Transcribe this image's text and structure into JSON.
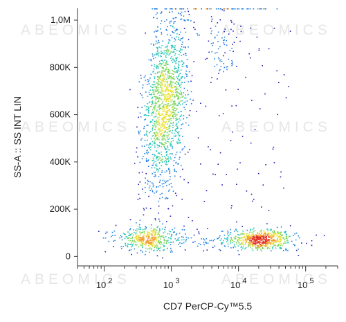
{
  "chart_data": {
    "type": "scatter",
    "title": "",
    "xlabel": "CD7 PerCP-Cy™5.5",
    "ylabel": "SS-A :: SS INT LIN",
    "x_scale": "log",
    "xlim": [
      40,
      300000
    ],
    "ylim": [
      -40000,
      1050000
    ],
    "x_ticks": [
      {
        "value": 100,
        "base": "10",
        "exp": "2"
      },
      {
        "value": 1000,
        "base": "10",
        "exp": "3"
      },
      {
        "value": 10000,
        "base": "10",
        "exp": "4"
      },
      {
        "value": 100000,
        "base": "10",
        "exp": "5"
      }
    ],
    "y_ticks": [
      {
        "value": 0,
        "label": "0"
      },
      {
        "value": 200000,
        "label": "200K"
      },
      {
        "value": 400000,
        "label": "400K"
      },
      {
        "value": 600000,
        "label": "600K"
      },
      {
        "value": 800000,
        "label": "800K"
      },
      {
        "value": 1000000,
        "label": "1,0M"
      }
    ],
    "colormap": [
      "#1c1cb4",
      "#1f7fe0",
      "#25c4b8",
      "#7dd65a",
      "#e8e23a",
      "#f29a2a",
      "#e03020"
    ],
    "populations": [
      {
        "x_center": 800,
        "y_center": 650000,
        "x_spread": 0.16,
        "y_spread": 200000,
        "share": 0.55
      },
      {
        "x_center": 420,
        "y_center": 75000,
        "x_spread": 0.22,
        "y_spread": 25000,
        "share": 0.16
      },
      {
        "x_center": 22000,
        "y_center": 75000,
        "x_spread": 0.25,
        "y_spread": 22000,
        "share": 0.22
      },
      {
        "x_center": 5500,
        "y_center": 900000,
        "x_spread": 0.12,
        "y_spread": 100000,
        "share": 0.03
      }
    ],
    "watermark": "ABEOMICS",
    "grid": false
  }
}
